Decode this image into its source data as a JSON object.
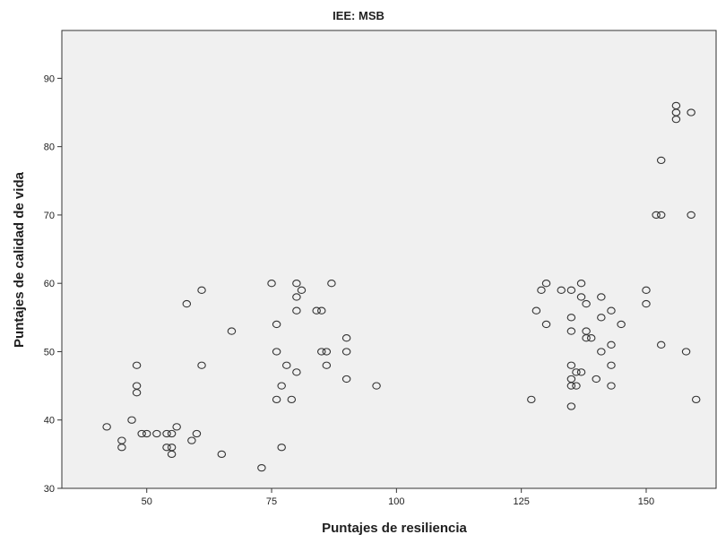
{
  "chart_data": {
    "type": "scatter",
    "title": "IEE: MSB",
    "xlabel": "Puntajes de resiliencia",
    "ylabel": "Puntajes de calidad de vida",
    "xlim": [
      33,
      164
    ],
    "ylim": [
      30,
      97
    ],
    "xticks": [
      50,
      75,
      100,
      125,
      150
    ],
    "yticks": [
      30,
      40,
      50,
      60,
      70,
      80,
      90
    ],
    "grid": false,
    "legend": "none",
    "colors": {
      "plot_background": "#f0f0f0",
      "marker_stroke": "#333333",
      "axis": "#333333"
    },
    "points": [
      [
        42,
        39
      ],
      [
        45,
        37
      ],
      [
        45,
        36
      ],
      [
        47,
        40
      ],
      [
        48,
        48
      ],
      [
        48,
        45
      ],
      [
        48,
        44
      ],
      [
        49,
        38
      ],
      [
        50,
        38
      ],
      [
        52,
        38
      ],
      [
        54,
        38
      ],
      [
        54,
        36
      ],
      [
        55,
        38
      ],
      [
        55,
        36
      ],
      [
        55,
        35
      ],
      [
        56,
        39
      ],
      [
        58,
        57
      ],
      [
        59,
        37
      ],
      [
        60,
        38
      ],
      [
        61,
        59
      ],
      [
        61,
        48
      ],
      [
        65,
        35
      ],
      [
        67,
        53
      ],
      [
        73,
        33
      ],
      [
        75,
        60
      ],
      [
        76,
        54
      ],
      [
        76,
        50
      ],
      [
        76,
        43
      ],
      [
        77,
        45
      ],
      [
        77,
        36
      ],
      [
        78,
        48
      ],
      [
        79,
        43
      ],
      [
        80,
        60
      ],
      [
        80,
        58
      ],
      [
        80,
        56
      ],
      [
        80,
        47
      ],
      [
        81,
        59
      ],
      [
        84,
        56
      ],
      [
        85,
        56
      ],
      [
        85,
        50
      ],
      [
        86,
        50
      ],
      [
        86,
        48
      ],
      [
        87,
        60
      ],
      [
        90,
        52
      ],
      [
        90,
        50
      ],
      [
        90,
        46
      ],
      [
        96,
        45
      ],
      [
        127,
        43
      ],
      [
        128,
        56
      ],
      [
        129,
        59
      ],
      [
        130,
        60
      ],
      [
        130,
        54
      ],
      [
        133,
        59
      ],
      [
        135,
        59
      ],
      [
        135,
        55
      ],
      [
        135,
        53
      ],
      [
        135,
        48
      ],
      [
        135,
        46
      ],
      [
        135,
        45
      ],
      [
        135,
        42
      ],
      [
        136,
        47
      ],
      [
        136,
        45
      ],
      [
        137,
        60
      ],
      [
        137,
        58
      ],
      [
        137,
        47
      ],
      [
        138,
        57
      ],
      [
        138,
        53
      ],
      [
        138,
        52
      ],
      [
        139,
        52
      ],
      [
        140,
        46
      ],
      [
        141,
        58
      ],
      [
        141,
        55
      ],
      [
        141,
        50
      ],
      [
        143,
        56
      ],
      [
        143,
        51
      ],
      [
        143,
        48
      ],
      [
        143,
        45
      ],
      [
        145,
        54
      ],
      [
        150,
        59
      ],
      [
        150,
        57
      ],
      [
        152,
        70
      ],
      [
        153,
        78
      ],
      [
        153,
        70
      ],
      [
        153,
        51
      ],
      [
        156,
        86
      ],
      [
        156,
        85
      ],
      [
        156,
        84
      ],
      [
        158,
        50
      ],
      [
        159,
        85
      ],
      [
        159,
        70
      ],
      [
        160,
        43
      ]
    ]
  }
}
